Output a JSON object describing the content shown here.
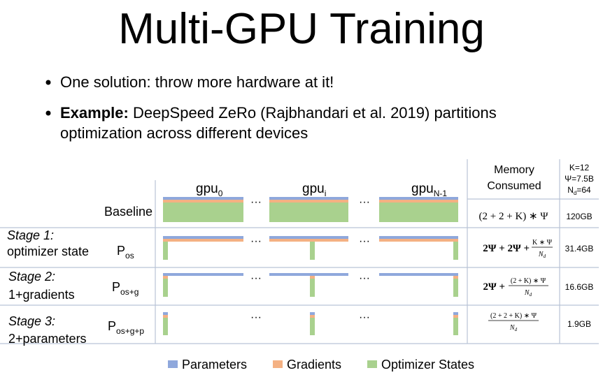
{
  "title": "Multi-GPU Training",
  "bullets": [
    {
      "text": "One solution: throw more hardware at it!"
    },
    {
      "bold": "Example:",
      "lines": [
        "DeepSpeed ZeRo (Rajbhandari et al. 2019) partitions",
        "optimization across different devices"
      ]
    }
  ],
  "figure": {
    "gpus": [
      {
        "base": "gpu",
        "sub": "0"
      },
      {
        "base": "gpu",
        "sub": "i"
      },
      {
        "base": "gpu",
        "sub": "N-1"
      }
    ],
    "ellipsis": "···",
    "memory_header": [
      "Memory",
      "Consumed"
    ],
    "constants": [
      {
        "text": "K=12"
      },
      {
        "text": "Ψ=7.5B"
      },
      {
        "base": "N",
        "sub": "d",
        "text": "=64"
      }
    ],
    "rows": [
      {
        "label": "Baseline",
        "formula": {
          "text": "(2 + 2 + K) ∗ Ψ"
        },
        "size": "120GB"
      },
      {
        "stage": "Stage 1:",
        "desc": "optimizer state",
        "p": "P",
        "p_sub": "os",
        "formula": {
          "lead": "2Ψ + 2Ψ +",
          "num": "K ∗ Ψ",
          "den": "N",
          "den_sub": "d"
        },
        "size": "31.4GB"
      },
      {
        "stage": "Stage 2:",
        "desc": "1+gradients",
        "p": "P",
        "p_sub": "os+g",
        "formula": {
          "lead": "2Ψ +",
          "num": "(2 + K) ∗ Ψ",
          "den": "N",
          "den_sub": "d"
        },
        "size": "16.6GB"
      },
      {
        "stage": "Stage 3:",
        "desc": "2+parameters",
        "p": "P",
        "p_sub": "os+g+p",
        "formula": {
          "num": "(2 + 2 + K) ∗ Ψ",
          "den": "N",
          "den_sub": "d"
        },
        "size": "1.9GB"
      }
    ],
    "legend": [
      "Parameters",
      "Gradients",
      "Optimizer States"
    ]
  }
}
